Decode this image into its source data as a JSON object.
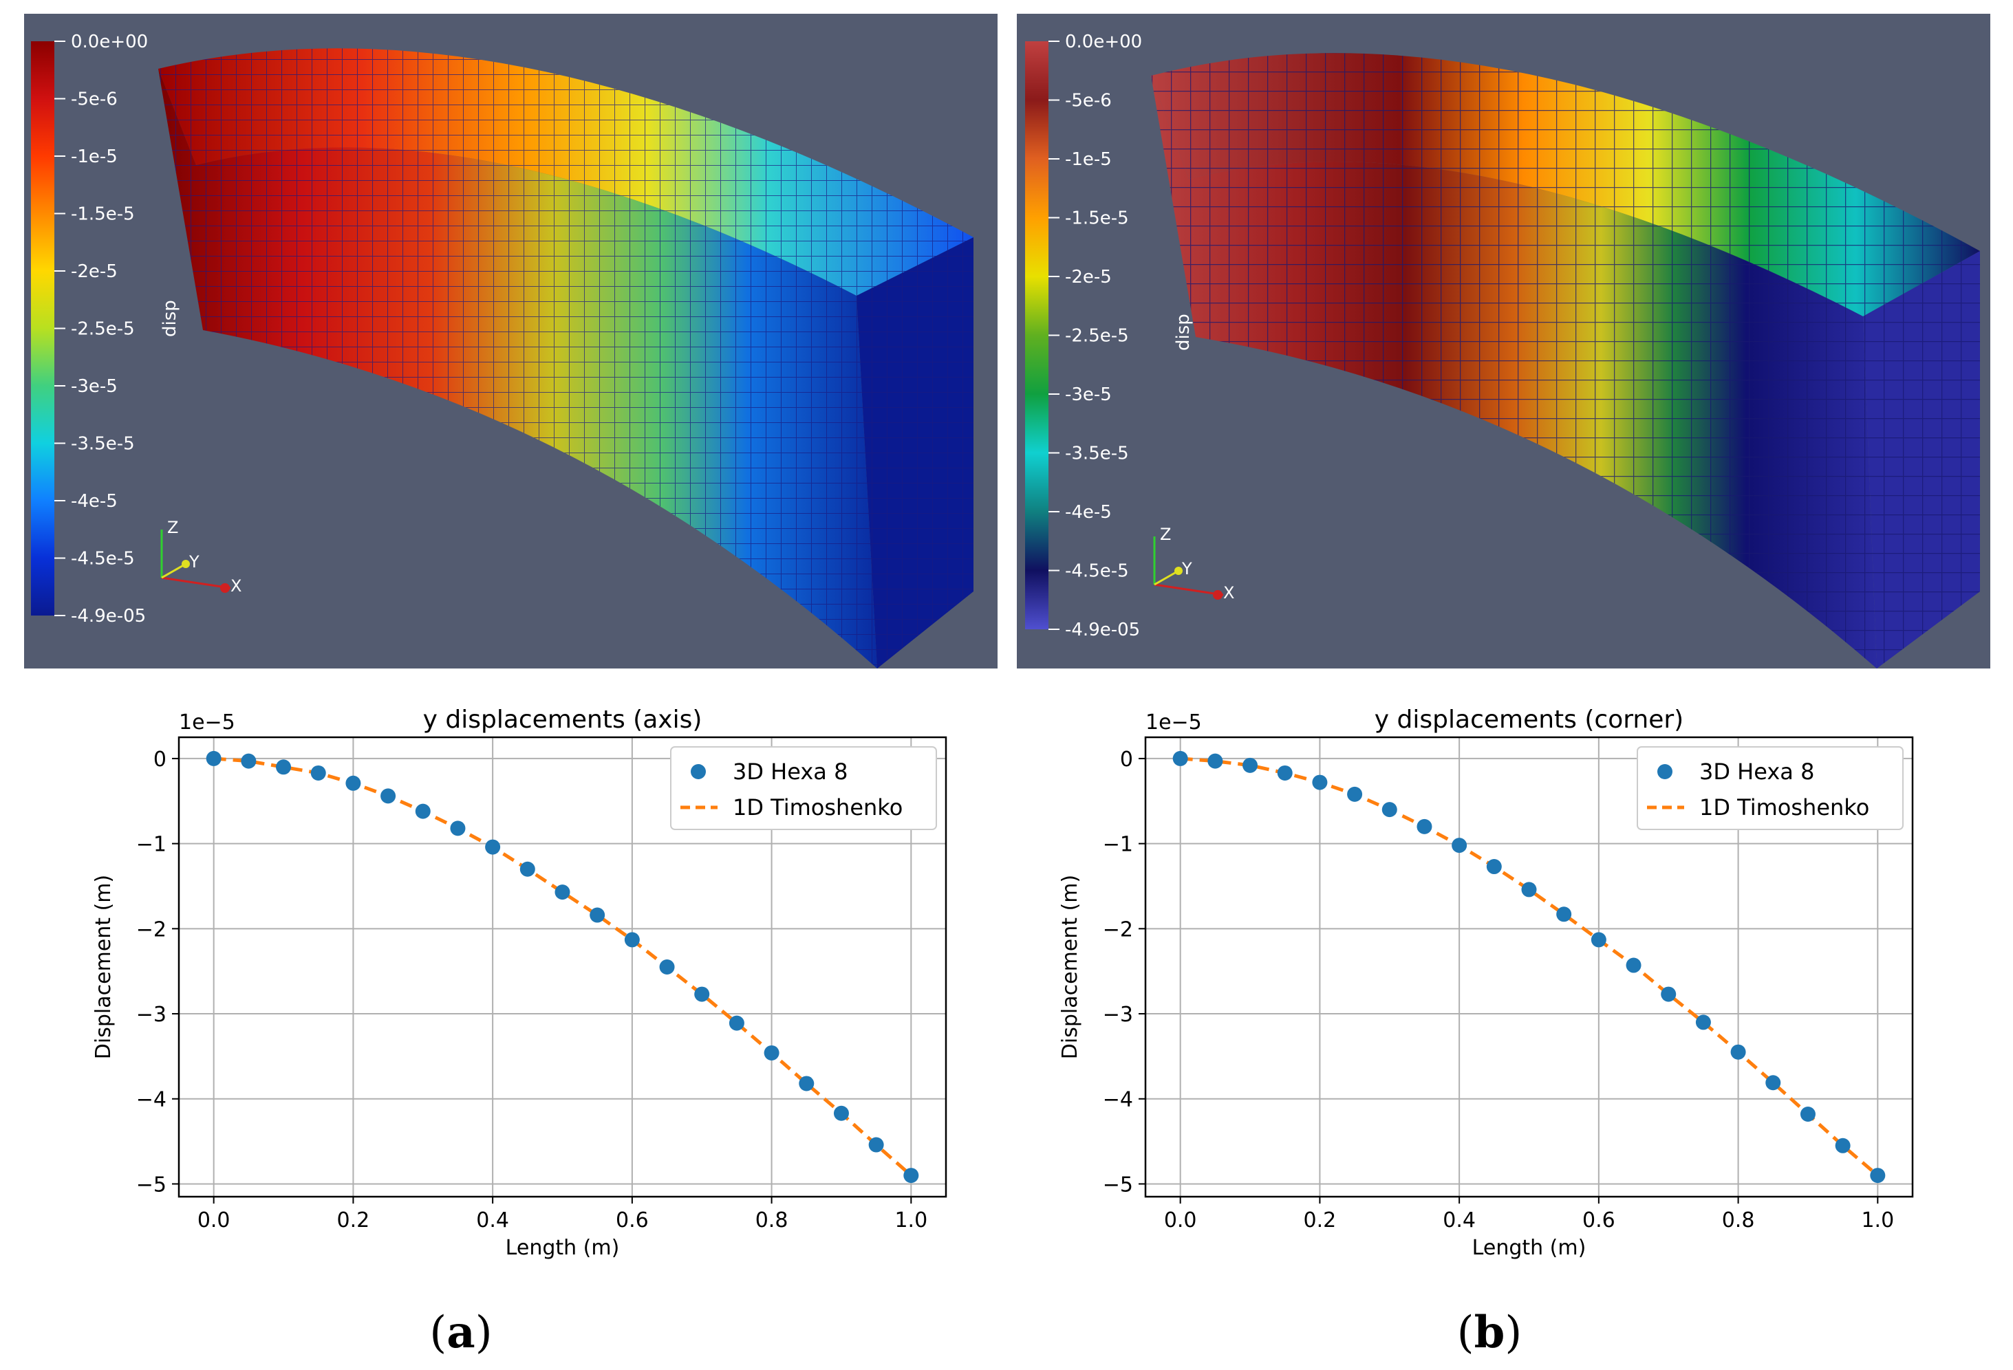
{
  "figure": {
    "panels": [
      {
        "id": "a",
        "caption_letter": "a",
        "colorbar": {
          "title": "disp",
          "labels": [
            "0.0e+00",
            "-5e-6",
            "-1e-5",
            "-1.5e-5",
            "-2e-5",
            "-2.5e-5",
            "-3e-5",
            "-3.5e-5",
            "-4e-5",
            "-4.5e-5",
            "-4.9e-05"
          ],
          "colors": [
            "#8b0000",
            "#d01010",
            "#ff3a00",
            "#ff8a00",
            "#ffd800",
            "#b8e020",
            "#40d080",
            "#10d0e0",
            "#1080ff",
            "#0830d8",
            "#0a1a90"
          ]
        },
        "axes_triad": {
          "x": "X",
          "y": "Y",
          "z": "Z"
        }
      },
      {
        "id": "b",
        "caption_letter": "b",
        "colorbar": {
          "title": "disp",
          "labels": [
            "0.0e+00",
            "-5e-6",
            "-1e-5",
            "-1.5e-5",
            "-2e-5",
            "-2.5e-5",
            "-3e-5",
            "-3.5e-5",
            "-4e-5",
            "-4.5e-5",
            "-4.9e-05"
          ],
          "colors": [
            "#c04040",
            "#8b1a1a",
            "#e06020",
            "#ffa000",
            "#e8e000",
            "#60b020",
            "#10a040",
            "#10d0d0",
            "#108080",
            "#101060",
            "#5050d0"
          ]
        },
        "axes_triad": {
          "x": "X",
          "y": "Y",
          "z": "Z"
        }
      }
    ],
    "caption_parens": [
      "(",
      ")"
    ]
  },
  "chart_data": [
    {
      "type": "line",
      "title": "y displacements (axis)",
      "xlabel": "Length (m)",
      "ylabel": "Displacement (m)",
      "offset_label": "1e−5",
      "xlim": [
        -0.05,
        1.05
      ],
      "ylim": [
        -5.15,
        0.25
      ],
      "xticks": [
        "0.0",
        "0.2",
        "0.4",
        "0.6",
        "0.8",
        "1.0"
      ],
      "yticks": [
        "0",
        "−1",
        "−2",
        "−3",
        "−4",
        "−5"
      ],
      "grid": true,
      "legend": "top-right",
      "x": [
        0.0,
        0.05,
        0.1,
        0.15,
        0.2,
        0.25,
        0.3,
        0.35,
        0.4,
        0.45,
        0.5,
        0.55,
        0.6,
        0.65,
        0.7,
        0.75,
        0.8,
        0.85,
        0.9,
        0.95,
        1.0
      ],
      "series": [
        {
          "name": "3D Hexa 8",
          "style": "markers",
          "color": "#1f77b4",
          "values": [
            0.0,
            -0.03,
            -0.1,
            -0.17,
            -0.29,
            -0.44,
            -0.62,
            -0.82,
            -1.04,
            -1.3,
            -1.57,
            -1.84,
            -2.13,
            -2.45,
            -2.77,
            -3.11,
            -3.46,
            -3.82,
            -4.17,
            -4.54,
            -4.9
          ]
        },
        {
          "name": "1D Timoshenko",
          "style": "dashed",
          "color": "#ff7f0e",
          "values": [
            0.0,
            -0.03,
            -0.1,
            -0.17,
            -0.29,
            -0.44,
            -0.62,
            -0.82,
            -1.04,
            -1.3,
            -1.57,
            -1.84,
            -2.13,
            -2.45,
            -2.77,
            -3.11,
            -3.46,
            -3.82,
            -4.17,
            -4.54,
            -4.9
          ]
        }
      ]
    },
    {
      "type": "line",
      "title": "y displacements (corner)",
      "xlabel": "Length (m)",
      "ylabel": "Displacement (m)",
      "offset_label": "1e−5",
      "xlim": [
        -0.05,
        1.05
      ],
      "ylim": [
        -5.15,
        0.25
      ],
      "xticks": [
        "0.0",
        "0.2",
        "0.4",
        "0.6",
        "0.8",
        "1.0"
      ],
      "yticks": [
        "0",
        "−1",
        "−2",
        "−3",
        "−4",
        "−5"
      ],
      "grid": true,
      "legend": "top-right",
      "x": [
        0.0,
        0.05,
        0.1,
        0.15,
        0.2,
        0.25,
        0.3,
        0.35,
        0.4,
        0.45,
        0.5,
        0.55,
        0.6,
        0.65,
        0.7,
        0.75,
        0.8,
        0.85,
        0.9,
        0.95,
        1.0
      ],
      "series": [
        {
          "name": "3D Hexa 8",
          "style": "markers",
          "color": "#1f77b4",
          "values": [
            0.0,
            -0.03,
            -0.08,
            -0.17,
            -0.28,
            -0.42,
            -0.6,
            -0.8,
            -1.02,
            -1.27,
            -1.54,
            -1.83,
            -2.13,
            -2.43,
            -2.77,
            -3.1,
            -3.45,
            -3.81,
            -4.18,
            -4.55,
            -4.9
          ]
        },
        {
          "name": "1D Timoshenko",
          "style": "dashed",
          "color": "#ff7f0e",
          "values": [
            0.0,
            -0.03,
            -0.08,
            -0.17,
            -0.28,
            -0.42,
            -0.6,
            -0.8,
            -1.02,
            -1.27,
            -1.54,
            -1.83,
            -2.13,
            -2.43,
            -2.77,
            -3.1,
            -3.45,
            -3.81,
            -4.18,
            -4.55,
            -4.9
          ]
        }
      ]
    }
  ]
}
